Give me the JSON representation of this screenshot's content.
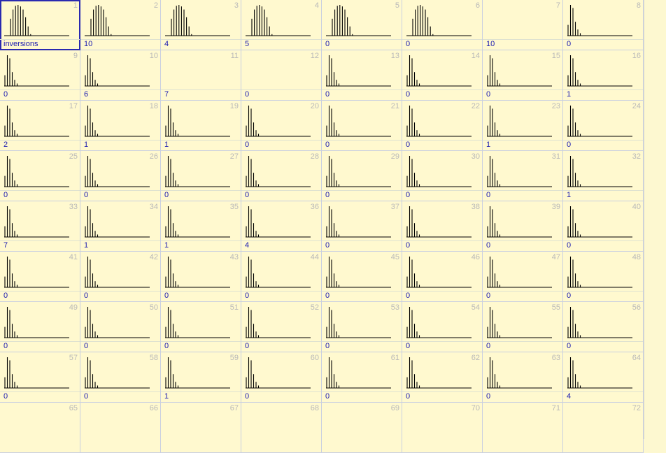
{
  "grid": {
    "cells": [
      {
        "n": "1",
        "value": "inversions",
        "chart": true,
        "shape": "bell"
      },
      {
        "n": "2",
        "value": "10",
        "chart": true,
        "shape": "bell"
      },
      {
        "n": "3",
        "value": "4",
        "chart": true,
        "shape": "bell"
      },
      {
        "n": "4",
        "value": "5",
        "chart": true,
        "shape": "bell"
      },
      {
        "n": "5",
        "value": "0",
        "chart": true,
        "shape": "bell"
      },
      {
        "n": "6",
        "value": "0",
        "chart": true,
        "shape": "bell"
      },
      {
        "n": "7",
        "value": "10",
        "chart": false
      },
      {
        "n": "8",
        "value": "0",
        "chart": true,
        "shape": "decay"
      },
      {
        "n": "9",
        "value": "0",
        "chart": true,
        "shape": "decay"
      },
      {
        "n": "10",
        "value": "6",
        "chart": true,
        "shape": "decay"
      },
      {
        "n": "11",
        "value": "7",
        "chart": false
      },
      {
        "n": "12",
        "value": "0",
        "chart": false
      },
      {
        "n": "13",
        "value": "0",
        "chart": true,
        "shape": "decay"
      },
      {
        "n": "14",
        "value": "0",
        "chart": true,
        "shape": "decay"
      },
      {
        "n": "15",
        "value": "0",
        "chart": true,
        "shape": "decay"
      },
      {
        "n": "16",
        "value": "1",
        "chart": true,
        "shape": "decay"
      },
      {
        "n": "17",
        "value": "2",
        "chart": true,
        "shape": "decay"
      },
      {
        "n": "18",
        "value": "1",
        "chart": true,
        "shape": "decay"
      },
      {
        "n": "19",
        "value": "1",
        "chart": true,
        "shape": "decay"
      },
      {
        "n": "20",
        "value": "0",
        "chart": true,
        "shape": "decay"
      },
      {
        "n": "21",
        "value": "0",
        "chart": true,
        "shape": "decay"
      },
      {
        "n": "22",
        "value": "0",
        "chart": true,
        "shape": "decay"
      },
      {
        "n": "23",
        "value": "1",
        "chart": true,
        "shape": "decay"
      },
      {
        "n": "24",
        "value": "0",
        "chart": true,
        "shape": "decay"
      },
      {
        "n": "25",
        "value": "0",
        "chart": true,
        "shape": "decay"
      },
      {
        "n": "26",
        "value": "0",
        "chart": true,
        "shape": "decay"
      },
      {
        "n": "27",
        "value": "0",
        "chart": true,
        "shape": "decay"
      },
      {
        "n": "28",
        "value": "0",
        "chart": true,
        "shape": "decay"
      },
      {
        "n": "29",
        "value": "0",
        "chart": true,
        "shape": "decay"
      },
      {
        "n": "30",
        "value": "0",
        "chart": true,
        "shape": "decay"
      },
      {
        "n": "31",
        "value": "0",
        "chart": true,
        "shape": "decay"
      },
      {
        "n": "32",
        "value": "1",
        "chart": true,
        "shape": "decay"
      },
      {
        "n": "33",
        "value": "7",
        "chart": true,
        "shape": "decay"
      },
      {
        "n": "34",
        "value": "1",
        "chart": true,
        "shape": "decay"
      },
      {
        "n": "35",
        "value": "1",
        "chart": true,
        "shape": "decay"
      },
      {
        "n": "36",
        "value": "4",
        "chart": true,
        "shape": "decay"
      },
      {
        "n": "37",
        "value": "0",
        "chart": true,
        "shape": "decay"
      },
      {
        "n": "38",
        "value": "0",
        "chart": true,
        "shape": "decay"
      },
      {
        "n": "39",
        "value": "0",
        "chart": true,
        "shape": "decay"
      },
      {
        "n": "40",
        "value": "0",
        "chart": true,
        "shape": "decay"
      },
      {
        "n": "41",
        "value": "0",
        "chart": true,
        "shape": "decay"
      },
      {
        "n": "42",
        "value": "0",
        "chart": true,
        "shape": "decay"
      },
      {
        "n": "43",
        "value": "0",
        "chart": true,
        "shape": "decay"
      },
      {
        "n": "44",
        "value": "0",
        "chart": true,
        "shape": "decay"
      },
      {
        "n": "45",
        "value": "0",
        "chart": true,
        "shape": "decay"
      },
      {
        "n": "46",
        "value": "0",
        "chart": true,
        "shape": "decay"
      },
      {
        "n": "47",
        "value": "0",
        "chart": true,
        "shape": "decay"
      },
      {
        "n": "48",
        "value": "0",
        "chart": true,
        "shape": "decay"
      },
      {
        "n": "49",
        "value": "0",
        "chart": true,
        "shape": "decay"
      },
      {
        "n": "50",
        "value": "0",
        "chart": true,
        "shape": "decay"
      },
      {
        "n": "51",
        "value": "0",
        "chart": true,
        "shape": "decay"
      },
      {
        "n": "52",
        "value": "0",
        "chart": true,
        "shape": "decay"
      },
      {
        "n": "53",
        "value": "0",
        "chart": true,
        "shape": "decay"
      },
      {
        "n": "54",
        "value": "0",
        "chart": true,
        "shape": "decay"
      },
      {
        "n": "55",
        "value": "0",
        "chart": true,
        "shape": "decay"
      },
      {
        "n": "56",
        "value": "0",
        "chart": true,
        "shape": "decay"
      },
      {
        "n": "57",
        "value": "0",
        "chart": true,
        "shape": "decay"
      },
      {
        "n": "58",
        "value": "0",
        "chart": true,
        "shape": "decay"
      },
      {
        "n": "59",
        "value": "1",
        "chart": true,
        "shape": "decay"
      },
      {
        "n": "60",
        "value": "0",
        "chart": true,
        "shape": "decay"
      },
      {
        "n": "61",
        "value": "0",
        "chart": true,
        "shape": "decay"
      },
      {
        "n": "62",
        "value": "0",
        "chart": true,
        "shape": "decay"
      },
      {
        "n": "63",
        "value": "0",
        "chart": true,
        "shape": "decay"
      },
      {
        "n": "64",
        "value": "4",
        "chart": true,
        "shape": "decay"
      },
      {
        "n": "65",
        "value": "",
        "chart": false
      },
      {
        "n": "66",
        "value": "",
        "chart": false
      },
      {
        "n": "67",
        "value": "",
        "chart": false
      },
      {
        "n": "68",
        "value": "",
        "chart": false
      },
      {
        "n": "69",
        "value": "",
        "chart": false
      },
      {
        "n": "70",
        "value": "",
        "chart": false
      },
      {
        "n": "71",
        "value": "",
        "chart": false
      },
      {
        "n": "72",
        "value": "",
        "chart": false
      }
    ],
    "selected_cell": "1"
  },
  "colors": {
    "background": "#fff9cf",
    "grid_line": "#c9cfe0",
    "value_text": "#1b1bb0",
    "index_text": "#b9b9b9",
    "selection": "#2a2ab0"
  }
}
